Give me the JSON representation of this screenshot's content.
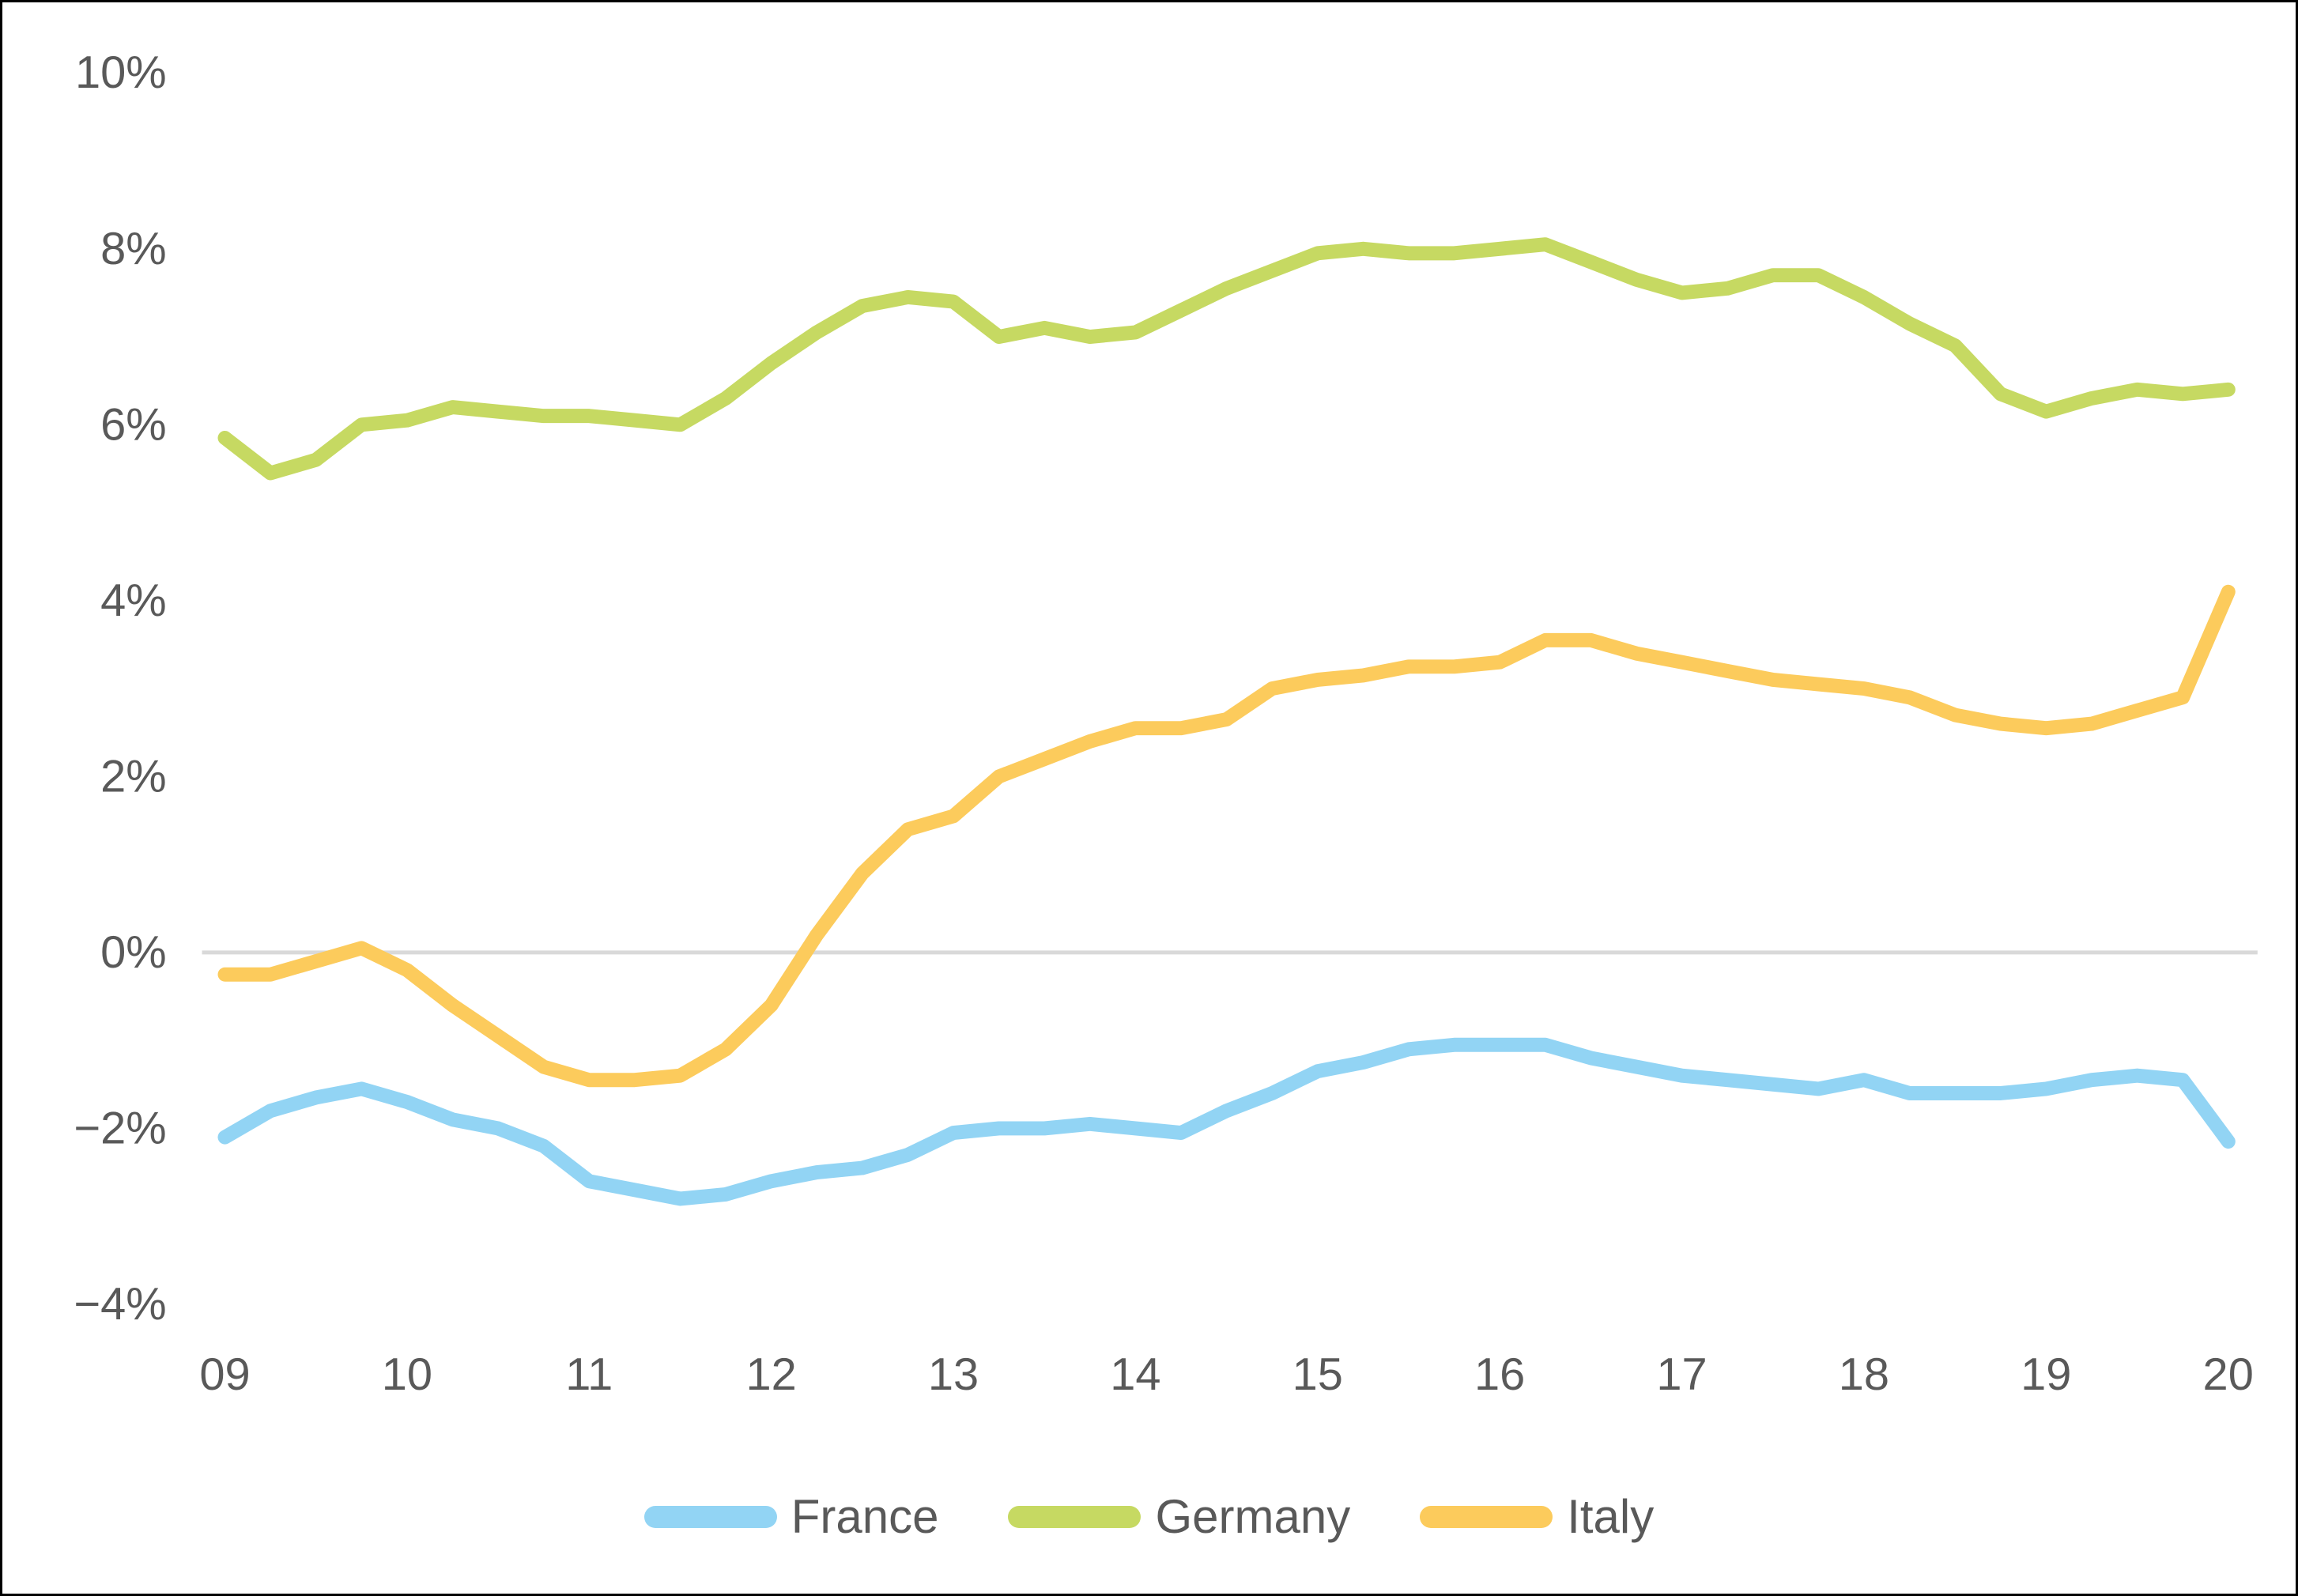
{
  "chart_data": {
    "type": "line",
    "title": "",
    "xlabel": "",
    "ylabel": "",
    "x_start_year": 2009,
    "x_step_years": 0.25,
    "x_tick_labels": [
      "09",
      "10",
      "11",
      "12",
      "13",
      "14",
      "15",
      "16",
      "17",
      "18",
      "19",
      "20"
    ],
    "y_ticks": [
      10,
      8,
      6,
      4,
      2,
      0,
      -2,
      -4
    ],
    "y_tick_suffix": "%",
    "ylim": [
      -4.7,
      10.9
    ],
    "grid": "horizontal line at 0% only",
    "legend_position": "bottom-center",
    "axis_label_color": "#595959",
    "gridline_color": "#d9d9d9",
    "background_color": "#ffffff",
    "series": [
      {
        "name": "France",
        "color": "#92d4f4",
        "values": [
          -2.1,
          -1.8,
          -1.65,
          -1.55,
          -1.7,
          -1.9,
          -2.0,
          -2.2,
          -2.6,
          -2.7,
          -2.8,
          -2.75,
          -2.6,
          -2.5,
          -2.45,
          -2.3,
          -2.05,
          -2.0,
          -2.0,
          -1.95,
          -2.0,
          -2.05,
          -1.8,
          -1.6,
          -1.35,
          -1.25,
          -1.1,
          -1.05,
          -1.05,
          -1.05,
          -1.2,
          -1.3,
          -1.4,
          -1.45,
          -1.5,
          -1.55,
          -1.45,
          -1.6,
          -1.6,
          -1.6,
          -1.55,
          -1.45,
          -1.4,
          -1.45,
          -2.15
        ]
      },
      {
        "name": "Germany",
        "color": "#c6d962",
        "values": [
          5.85,
          5.45,
          5.6,
          6.0,
          6.05,
          6.2,
          6.15,
          6.1,
          6.1,
          6.05,
          6.0,
          6.3,
          6.7,
          7.05,
          7.35,
          7.45,
          7.4,
          7.0,
          7.1,
          7.0,
          7.05,
          7.3,
          7.55,
          7.75,
          7.95,
          8.0,
          7.95,
          7.95,
          8.0,
          8.05,
          7.85,
          7.65,
          7.5,
          7.55,
          7.7,
          7.7,
          7.45,
          7.15,
          6.9,
          6.35,
          6.15,
          6.3,
          6.4,
          6.35,
          6.4
        ]
      },
      {
        "name": "Italy",
        "color": "#fccb5c",
        "values": [
          -0.25,
          -0.25,
          -0.1,
          0.05,
          -0.2,
          -0.6,
          -0.95,
          -1.3,
          -1.45,
          -1.45,
          -1.4,
          -1.1,
          -0.6,
          0.2,
          0.9,
          1.4,
          1.55,
          2.0,
          2.2,
          2.4,
          2.55,
          2.55,
          2.65,
          3.0,
          3.1,
          3.15,
          3.25,
          3.25,
          3.3,
          3.55,
          3.55,
          3.4,
          3.3,
          3.2,
          3.1,
          3.05,
          3.0,
          2.9,
          2.7,
          2.6,
          2.55,
          2.6,
          2.75,
          2.9,
          4.1
        ]
      }
    ]
  }
}
